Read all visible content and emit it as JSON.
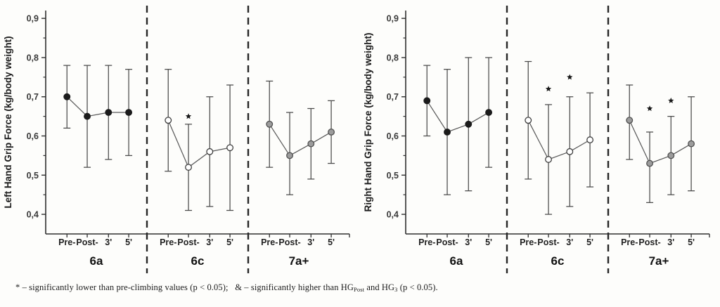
{
  "page": {
    "background": "#fdfdfb",
    "accent_dark": "#1b1b1b",
    "gray_marker": "#9c9c9c"
  },
  "chart_data": [
    {
      "type": "line",
      "panel": "left",
      "title": "",
      "xlabel": "",
      "ylabel": "Left Hand Grip Force (kg/body weight)",
      "ylim": [
        0.35,
        0.92
      ],
      "grid": false,
      "legend": "none",
      "decimal_separator": ",",
      "yticks": [
        0.9,
        0.8,
        0.7,
        0.6,
        0.5,
        0.4
      ],
      "ytick_labels": [
        "0,9",
        "0,8",
        "0,7",
        "0,6",
        "0,5",
        "0,4"
      ],
      "minor_yticks": [
        0.85,
        0.75,
        0.65,
        0.55,
        0.45
      ],
      "timepoints": [
        "Pre-",
        "Post-",
        "3'",
        "5'"
      ],
      "series": [
        {
          "name": "6a",
          "marker_style": "filled-black",
          "marker_fill": "#1b1b1b",
          "marker_stroke": "#1b1b1b",
          "points": [
            {
              "t": "Pre-",
              "y": 0.7,
              "err_lo": 0.62,
              "err_hi": 0.78
            },
            {
              "t": "Post-",
              "y": 0.65,
              "err_lo": 0.52,
              "err_hi": 0.78
            },
            {
              "t": "3'",
              "y": 0.66,
              "err_lo": 0.54,
              "err_hi": 0.78
            },
            {
              "t": "5'",
              "y": 0.66,
              "err_lo": 0.55,
              "err_hi": 0.77
            }
          ]
        },
        {
          "name": "6c",
          "marker_style": "open-white",
          "marker_fill": "#ffffff",
          "marker_stroke": "#3d3d3d",
          "points": [
            {
              "t": "Pre-",
              "y": 0.64,
              "err_lo": 0.51,
              "err_hi": 0.77
            },
            {
              "t": "Post-",
              "y": 0.52,
              "err_lo": 0.41,
              "err_hi": 0.63,
              "sig": "*",
              "sig_y": 0.65
            },
            {
              "t": "3'",
              "y": 0.56,
              "err_lo": 0.42,
              "err_hi": 0.7
            },
            {
              "t": "5'",
              "y": 0.57,
              "err_lo": 0.41,
              "err_hi": 0.73
            }
          ]
        },
        {
          "name": "7a+",
          "marker_style": "filled-gray",
          "marker_fill": "#9c9c9c",
          "marker_stroke": "#4f4f4f",
          "points": [
            {
              "t": "Pre-",
              "y": 0.63,
              "err_lo": 0.52,
              "err_hi": 0.74
            },
            {
              "t": "Post-",
              "y": 0.55,
              "err_lo": 0.45,
              "err_hi": 0.66
            },
            {
              "t": "3'",
              "y": 0.58,
              "err_lo": 0.49,
              "err_hi": 0.67
            },
            {
              "t": "5'",
              "y": 0.61,
              "err_lo": 0.53,
              "err_hi": 0.69
            }
          ]
        }
      ]
    },
    {
      "type": "line",
      "panel": "right",
      "title": "",
      "xlabel": "",
      "ylabel": "Right Hand Grip Force (kg/body weight)",
      "ylim": [
        0.35,
        0.92
      ],
      "grid": false,
      "legend": "none",
      "decimal_separator": ",",
      "yticks": [
        0.9,
        0.8,
        0.7,
        0.6,
        0.5,
        0.4
      ],
      "ytick_labels": [
        "0,9",
        "0,8",
        "0,7",
        "0,6",
        "0,5",
        "0,4"
      ],
      "minor_yticks": [
        0.85,
        0.75,
        0.65,
        0.55,
        0.45
      ],
      "timepoints": [
        "Pre-",
        "Post-",
        "3'",
        "5'"
      ],
      "series": [
        {
          "name": "6a",
          "marker_style": "filled-black",
          "marker_fill": "#1b1b1b",
          "marker_stroke": "#1b1b1b",
          "points": [
            {
              "t": "Pre-",
              "y": 0.69,
              "err_lo": 0.6,
              "err_hi": 0.78
            },
            {
              "t": "Post-",
              "y": 0.61,
              "err_lo": 0.45,
              "err_hi": 0.77
            },
            {
              "t": "3'",
              "y": 0.63,
              "err_lo": 0.46,
              "err_hi": 0.8
            },
            {
              "t": "5'",
              "y": 0.66,
              "err_lo": 0.52,
              "err_hi": 0.8
            }
          ]
        },
        {
          "name": "6c",
          "marker_style": "open-white",
          "marker_fill": "#ffffff",
          "marker_stroke": "#3d3d3d",
          "points": [
            {
              "t": "Pre-",
              "y": 0.64,
              "err_lo": 0.49,
              "err_hi": 0.79
            },
            {
              "t": "Post-",
              "y": 0.54,
              "err_lo": 0.4,
              "err_hi": 0.68,
              "sig": "*",
              "sig_y": 0.72
            },
            {
              "t": "3'",
              "y": 0.56,
              "err_lo": 0.42,
              "err_hi": 0.7,
              "sig": "*",
              "sig_y": 0.75
            },
            {
              "t": "5'",
              "y": 0.59,
              "err_lo": 0.47,
              "err_hi": 0.71
            }
          ]
        },
        {
          "name": "7a+",
          "marker_style": "filled-gray",
          "marker_fill": "#9c9c9c",
          "marker_stroke": "#4f4f4f",
          "points": [
            {
              "t": "Pre-",
              "y": 0.64,
              "err_lo": 0.54,
              "err_hi": 0.73
            },
            {
              "t": "Post-",
              "y": 0.53,
              "err_lo": 0.43,
              "err_hi": 0.61,
              "sig": "*",
              "sig_y": 0.67
            },
            {
              "t": "3'",
              "y": 0.55,
              "err_lo": 0.45,
              "err_hi": 0.65,
              "sig": "*",
              "sig_y": 0.69
            },
            {
              "t": "5'",
              "y": 0.58,
              "err_lo": 0.46,
              "err_hi": 0.7
            }
          ]
        }
      ]
    }
  ],
  "footnote": {
    "parts": [
      {
        "text": "* – significantly lower than pre-climbing values (p < 0.05);   & – significantly higher than HG",
        "sub": false
      },
      {
        "text": "Post",
        "sub": true
      },
      {
        "text": " and HG",
        "sub": false
      },
      {
        "text": "3",
        "sub": true
      },
      {
        "text": " (p < 0.05).",
        "sub": false
      }
    ]
  }
}
